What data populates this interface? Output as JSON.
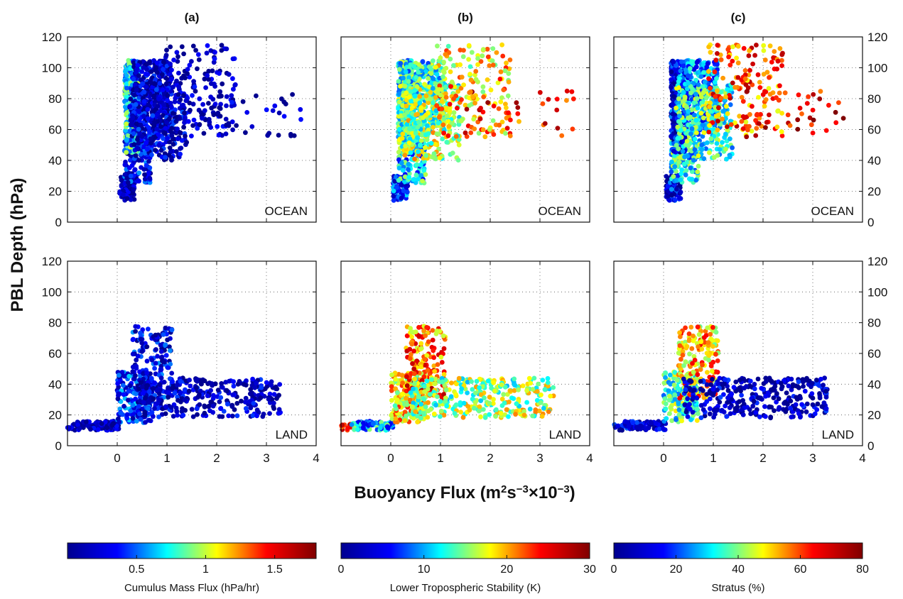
{
  "chart_data": {
    "type": "scatter",
    "y_axis_label": "PBL Depth (hPa)",
    "x_axis_label_parts": [
      "Buoyancy Flux (m",
      "2",
      "s",
      "−3",
      "×10",
      "−3",
      ")"
    ],
    "ylim": [
      0,
      120
    ],
    "yticks": [
      0,
      20,
      40,
      60,
      80,
      100,
      120
    ],
    "xlim": [
      -1,
      4
    ],
    "xticks": [
      0,
      1,
      2,
      3,
      4
    ],
    "grid": true,
    "columns": [
      {
        "title": "(a)",
        "colorbar": {
          "label": "Cumulus Mass Flux (hPa/hr)",
          "range": [
            0,
            1.8
          ],
          "ticks": [
            0.5,
            1,
            1.5
          ]
        }
      },
      {
        "title": "(b)",
        "colorbar": {
          "label": "Lower Tropospheric Stability (K)",
          "range": [
            0,
            30
          ],
          "ticks": [
            0,
            10,
            20,
            30
          ]
        }
      },
      {
        "title": "(c)",
        "colorbar": {
          "label": "Stratus (%)",
          "range": [
            0,
            80
          ],
          "ticks": [
            0,
            20,
            40,
            60,
            80
          ]
        }
      }
    ],
    "rows": [
      {
        "label": "OCEAN"
      },
      {
        "label": "LAND"
      }
    ],
    "colormap": [
      "#00008f",
      "#0000ff",
      "#00ffff",
      "#ffff00",
      "#ff0000",
      "#800000"
    ],
    "clusters": [
      {
        "row": 0,
        "x": [
          0.05,
          0.35
        ],
        "y": [
          14,
          30
        ],
        "n": 100,
        "c": [
          0.05,
          0.15,
          0.15
        ]
      },
      {
        "row": 0,
        "x": [
          0.15,
          0.7
        ],
        "y": [
          25,
          60
        ],
        "n": 160,
        "c": [
          0.15,
          0.3,
          0.4
        ]
      },
      {
        "row": 0,
        "x": [
          0.15,
          0.45
        ],
        "y": [
          45,
          105
        ],
        "n": 320,
        "c": [
          0.4,
          0.45,
          0.15
        ]
      },
      {
        "row": 0,
        "x": [
          0.3,
          1.1
        ],
        "y": [
          58,
          105
        ],
        "n": 340,
        "c": [
          0.08,
          0.45,
          0.3
        ]
      },
      {
        "row": 0,
        "x": [
          0.25,
          1.4
        ],
        "y": [
          40,
          90
        ],
        "n": 280,
        "c": [
          0.1,
          0.5,
          0.45
        ]
      },
      {
        "row": 0,
        "x": [
          0.9,
          2.4
        ],
        "y": [
          55,
          115
        ],
        "n": 150,
        "c": [
          0.05,
          0.65,
          0.75
        ]
      },
      {
        "row": 0,
        "x": [
          1.5,
          3.7
        ],
        "y": [
          55,
          85
        ],
        "n": 40,
        "c": [
          0.05,
          0.8,
          0.85
        ]
      },
      {
        "row": 1,
        "x": [
          -1,
          -0.8
        ],
        "y": [
          10,
          14
        ],
        "n": 12,
        "c": [
          0.05,
          0.75,
          0.1
        ]
      },
      {
        "row": 1,
        "x": [
          -0.8,
          0.05
        ],
        "y": [
          10,
          16
        ],
        "n": 90,
        "c": [
          0.05,
          0.25,
          0.1
        ]
      },
      {
        "row": 1,
        "x": [
          0.0,
          0.7
        ],
        "y": [
          15,
          48
        ],
        "n": 180,
        "c": [
          0.2,
          0.55,
          0.45
        ]
      },
      {
        "row": 1,
        "x": [
          0.3,
          1.1
        ],
        "y": [
          30,
          78
        ],
        "n": 170,
        "c": [
          0.15,
          0.7,
          0.65
        ]
      },
      {
        "row": 1,
        "x": [
          0.4,
          3.3
        ],
        "y": [
          18,
          44
        ],
        "n": 320,
        "c": [
          0.08,
          0.45,
          0.08
        ]
      }
    ],
    "annotations": [
      "OCEAN",
      "LAND"
    ]
  }
}
